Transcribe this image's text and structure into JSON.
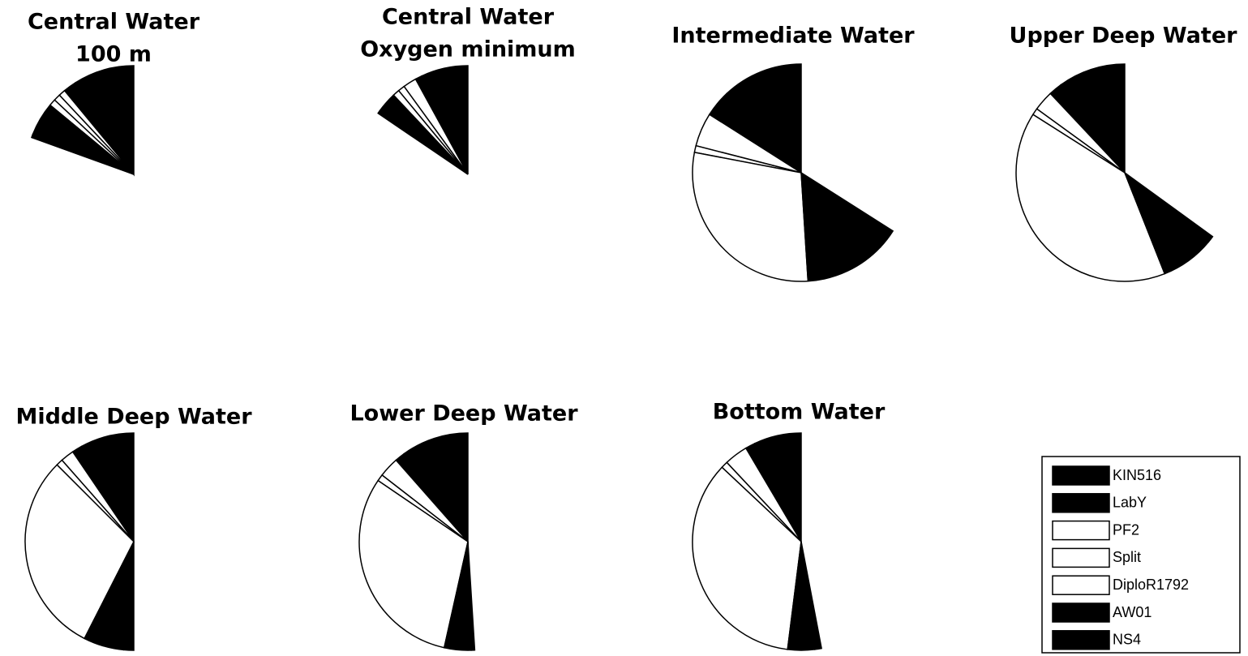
{
  "chart_data": [
    {
      "type": "pie",
      "title": [
        "Central Water",
        "100 m"
      ],
      "values": [
        9,
        2,
        1,
        1,
        1,
        5,
        0.5
      ]
    },
    {
      "type": "pie",
      "title": [
        "Central Water",
        "Oxygen minimum"
      ],
      "values": [
        7,
        1,
        2,
        1,
        1,
        3,
        0.5
      ]
    },
    {
      "type": "pie",
      "title": [
        "Intermediate Water"
      ],
      "values": [
        12,
        4,
        5,
        1,
        29,
        12,
        3
      ]
    },
    {
      "type": "pie",
      "title": [
        "Upper Deep Water"
      ],
      "values": [
        10,
        2,
        3,
        1,
        40,
        8,
        1
      ]
    },
    {
      "type": "pie",
      "title": [
        "Middle Deep Water"
      ],
      "values": [
        8,
        1.5,
        2,
        1,
        30,
        6,
        1.5
      ]
    },
    {
      "type": "pie",
      "title": [
        "Lower Deep Water"
      ],
      "values": [
        10,
        1.5,
        3,
        1,
        31,
        4,
        0.5
      ]
    },
    {
      "type": "pie",
      "title": [
        "Bottom Water"
      ],
      "values": [
        7,
        1.5,
        3.5,
        1,
        35,
        4,
        1
      ]
    }
  ],
  "legend": {
    "labels": [
      "KIN516",
      "LabY",
      "PF2",
      "Split",
      "DiploR1792",
      "AW01",
      "NS4"
    ],
    "colors": [
      "#000000",
      "#000000",
      "#ffffff",
      "#ffffff",
      "#ffffff",
      "#000000",
      "#000000"
    ]
  }
}
